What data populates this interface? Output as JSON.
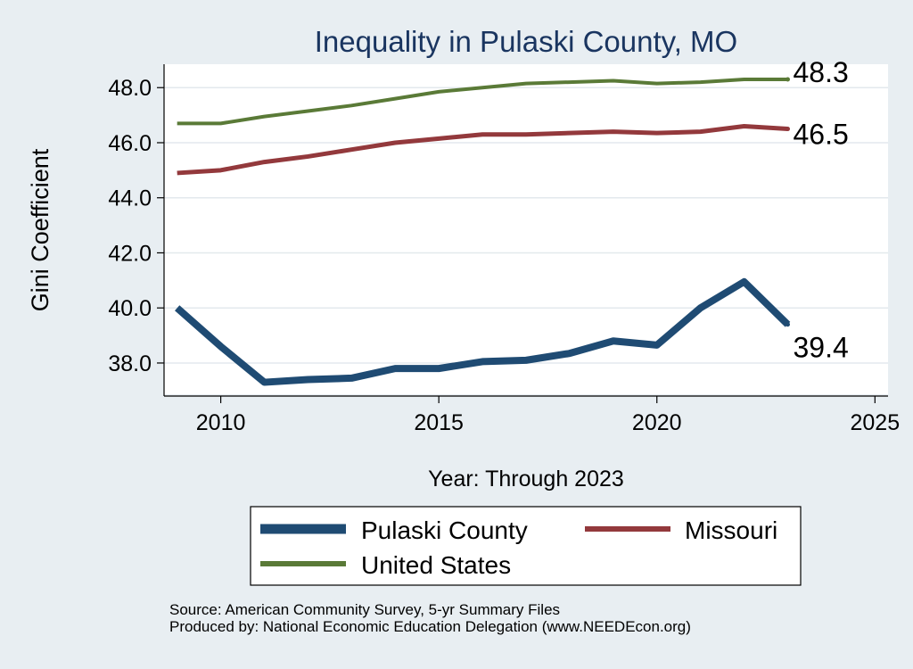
{
  "chart_data": {
    "type": "line",
    "title": "Inequality in Pulaski County, MO",
    "xlabel": "Year: Through 2023",
    "ylabel": "Gini Coefficient",
    "xlim": [
      2008.7,
      2025.3
    ],
    "ylim": [
      36.8,
      48.85
    ],
    "x_ticks": [
      2010,
      2015,
      2020,
      2025
    ],
    "y_ticks": [
      38.0,
      40.0,
      42.0,
      44.0,
      46.0,
      48.0
    ],
    "y_tick_labels": [
      "38.0",
      "40.0",
      "42.0",
      "44.0",
      "46.0",
      "48.0"
    ],
    "grid": true,
    "legend_position": "bottom",
    "x": [
      2009,
      2010,
      2011,
      2012,
      2013,
      2014,
      2015,
      2016,
      2017,
      2018,
      2019,
      2020,
      2021,
      2022,
      2023
    ],
    "series": [
      {
        "name": "Pulaski County",
        "color": "#1f4b73",
        "values": [
          40.0,
          38.6,
          37.3,
          37.4,
          37.45,
          37.8,
          37.8,
          38.05,
          38.1,
          38.35,
          38.8,
          38.65,
          40.0,
          40.95,
          39.4
        ],
        "end_label": "39.4"
      },
      {
        "name": "Missouri",
        "color": "#93393c",
        "values": [
          44.9,
          45.0,
          45.3,
          45.5,
          45.75,
          46.0,
          46.15,
          46.3,
          46.3,
          46.35,
          46.4,
          46.35,
          46.4,
          46.6,
          46.5
        ],
        "end_label": "46.5"
      },
      {
        "name": "United States",
        "color": "#5a7a37",
        "values": [
          46.7,
          46.7,
          46.95,
          47.15,
          47.35,
          47.6,
          47.85,
          48.0,
          48.15,
          48.2,
          48.25,
          48.15,
          48.2,
          48.3,
          48.3
        ],
        "end_label": "48.3"
      }
    ]
  },
  "source_line_1": "Source: American Community Survey, 5-yr Summary Files",
  "source_line_2": "Produced by: National Economic Education Delegation (www.NEEDEcon.org)"
}
